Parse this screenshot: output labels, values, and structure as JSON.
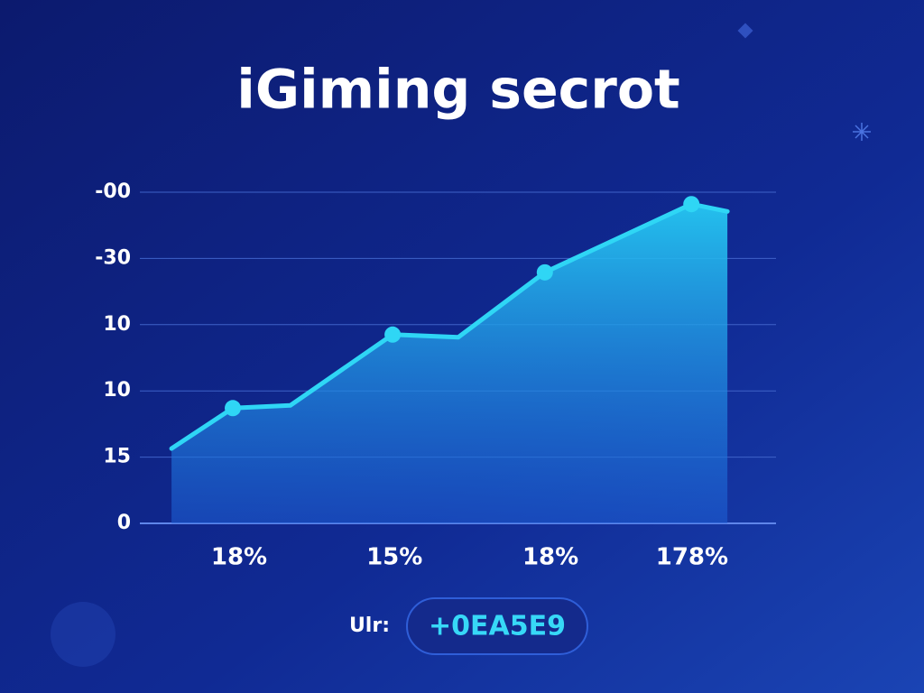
{
  "chart_data": {
    "type": "line",
    "title": "iGiming secrot",
    "x": [
      0.43,
      1.4,
      2.31,
      3.93,
      4.97,
      6.34,
      8.66,
      9.23
    ],
    "series": [
      {
        "color": "#2fd6f5",
        "values": [
          1.13,
          1.74,
          1.78,
          2.85,
          2.81,
          3.79,
          4.82,
          4.71
        ]
      }
    ],
    "markers": [
      1,
      3,
      5,
      6
    ],
    "xlim": [
      0,
      10
    ],
    "xticks": [
      {
        "value": 1.5,
        "label": "18%"
      },
      {
        "value": 3.96,
        "label": "15%"
      },
      {
        "value": 6.43,
        "label": "18%"
      },
      {
        "value": 8.67,
        "label": "178%"
      }
    ],
    "ylim": [
      0,
      5
    ],
    "yticks": [
      0,
      {
        "value": 1,
        "label": "15"
      },
      {
        "value": 2,
        "label": "10"
      },
      {
        "value": 3,
        "label": "10"
      },
      {
        "value": 4,
        "label": "-30"
      },
      {
        "value": 5,
        "label": "-00"
      }
    ],
    "grid": true,
    "footer_label": "Ulr:",
    "footer_value": "+0EA5E9"
  }
}
